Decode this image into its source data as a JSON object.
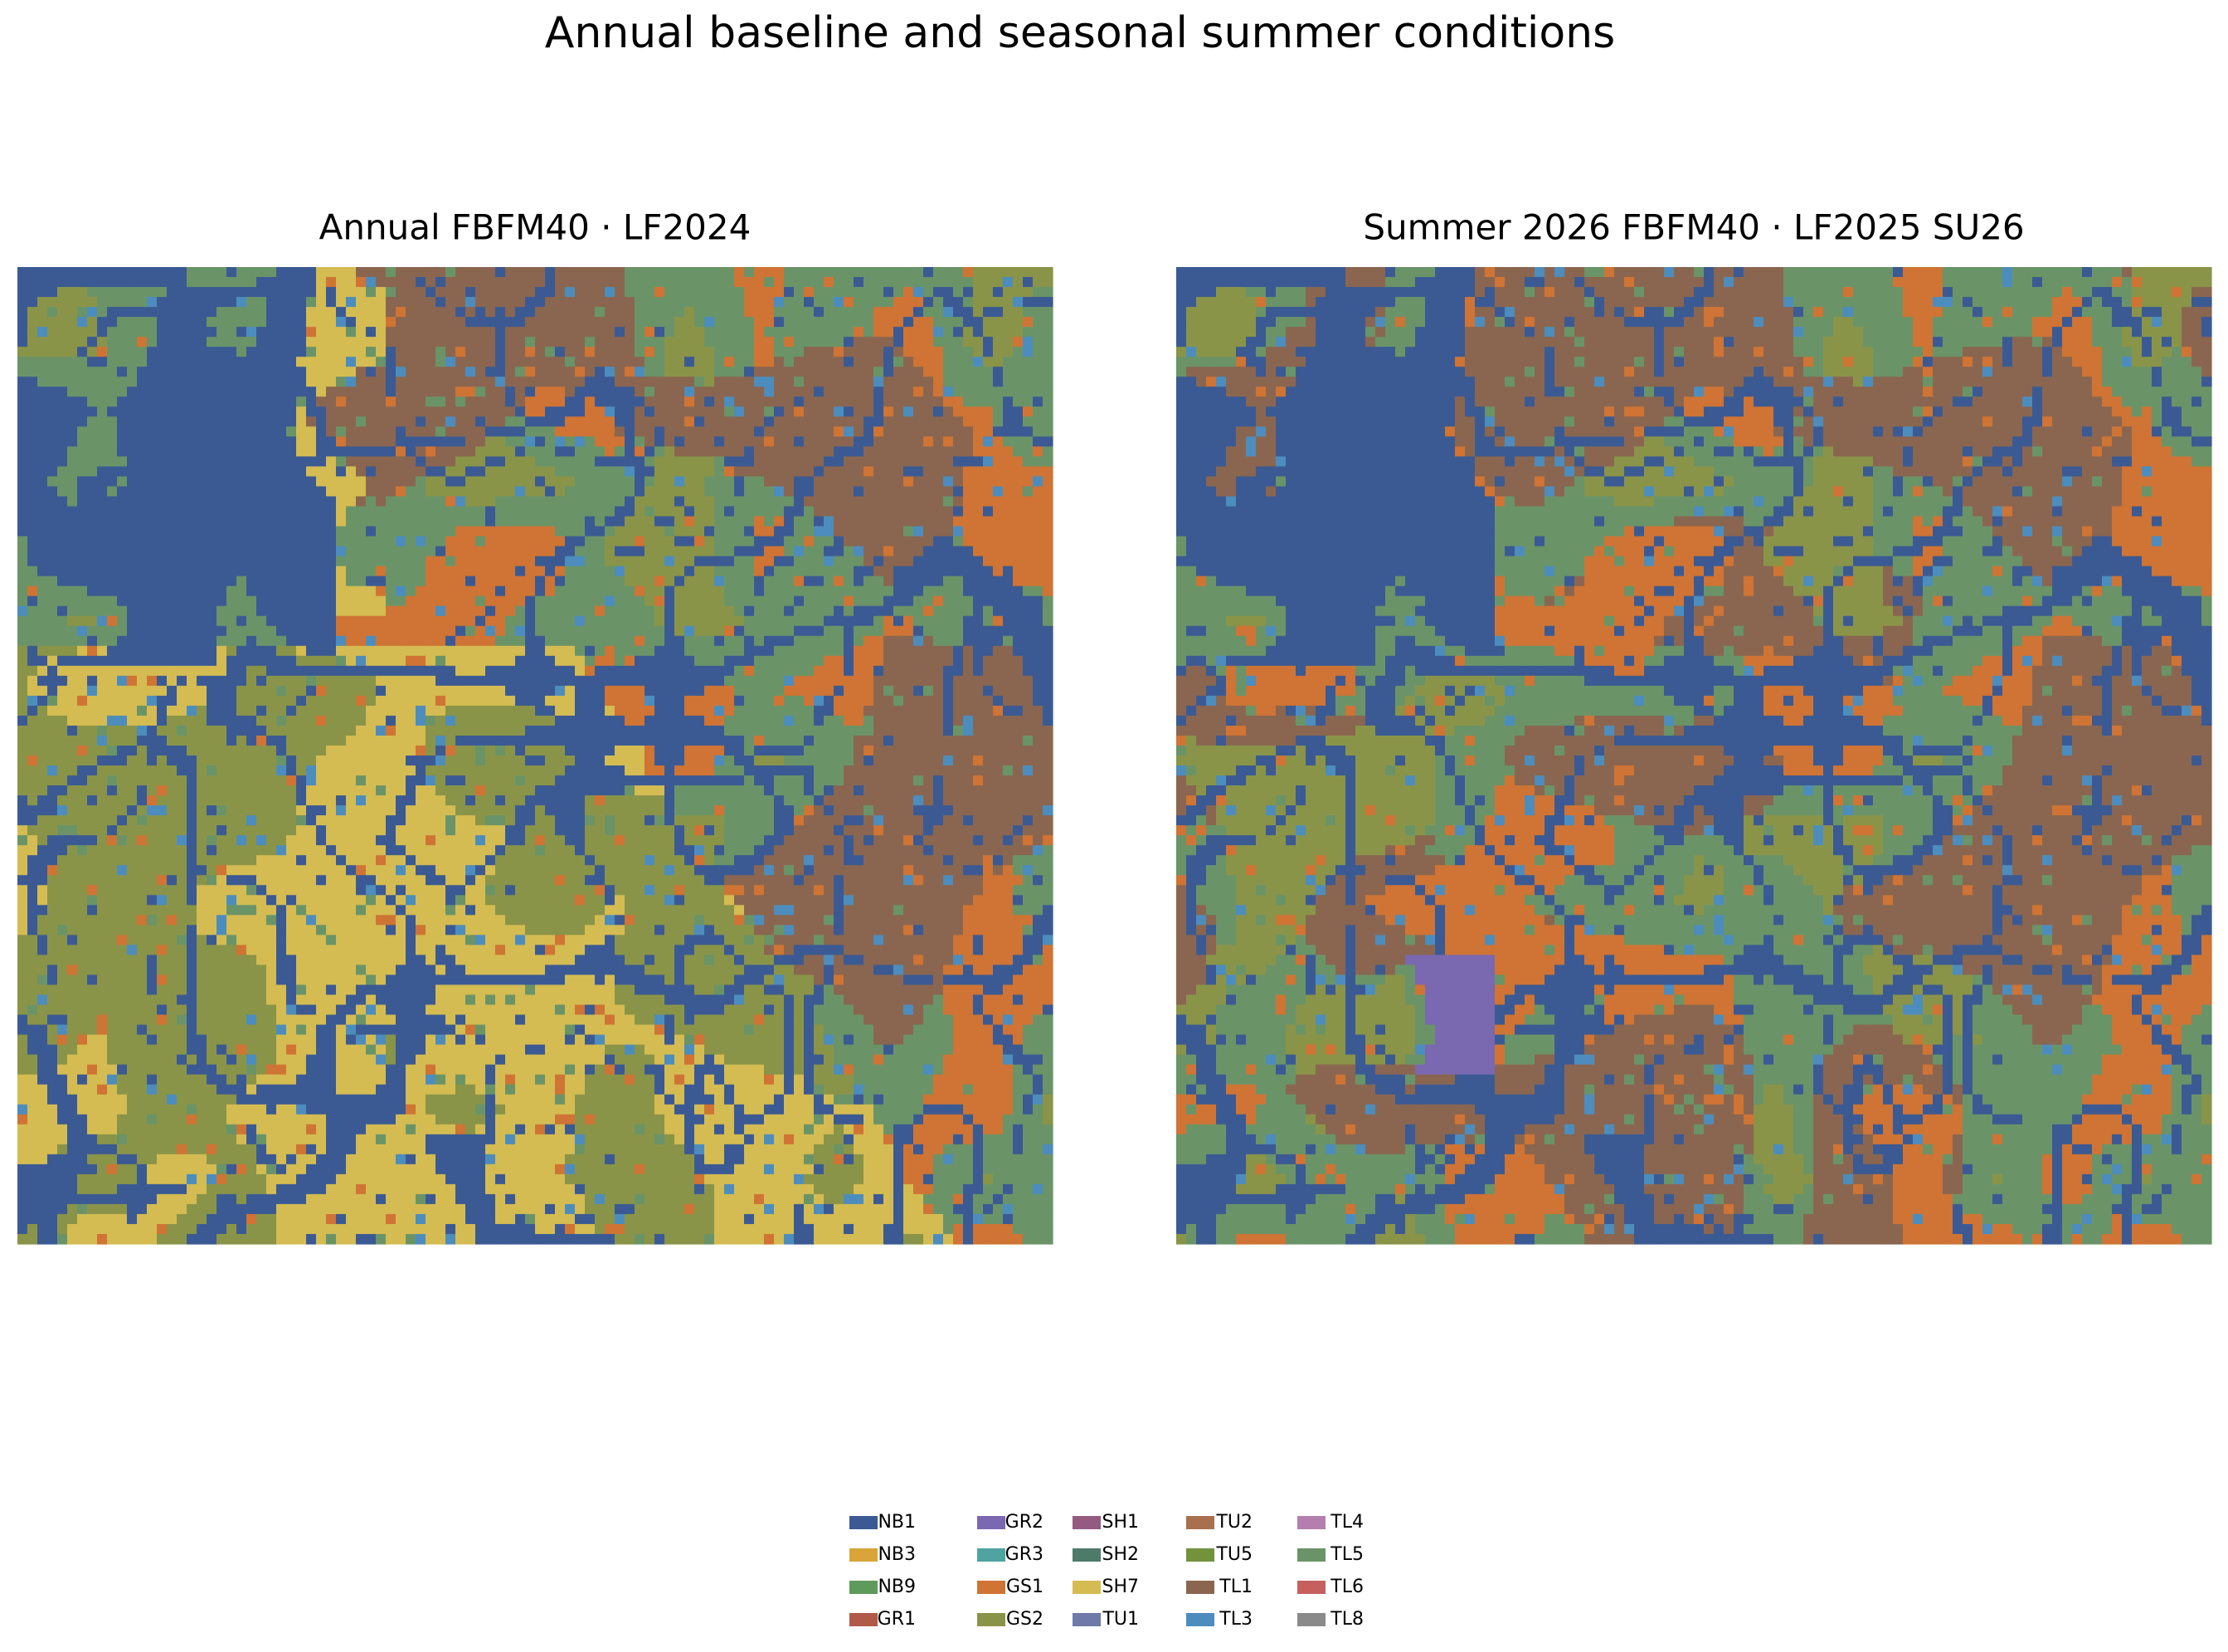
{
  "title": "Annual baseline and seasonal summer conditions",
  "panels": [
    {
      "title": "Annual FBFM40 · LF2024"
    },
    {
      "title": "Summer 2026 FBFM40 · LF2025 SU26"
    }
  ],
  "legend": [
    {
      "name": "NB1",
      "color": "#3b5a93"
    },
    {
      "name": "NB3",
      "color": "#d9a53a"
    },
    {
      "name": "NB9",
      "color": "#5e9a5a"
    },
    {
      "name": "GR1",
      "color": "#b05a48"
    },
    {
      "name": "GR2",
      "color": "#7a68b0"
    },
    {
      "name": "GR3",
      "color": "#4fa3a0"
    },
    {
      "name": "GS1",
      "color": "#cf7434"
    },
    {
      "name": "GS2",
      "color": "#8a9448"
    },
    {
      "name": "SH1",
      "color": "#955a80"
    },
    {
      "name": "SH2",
      "color": "#4e7a6a"
    },
    {
      "name": "SH7",
      "color": "#d4bc52"
    },
    {
      "name": "TU1",
      "color": "#6f7aa8"
    },
    {
      "name": "TU2",
      "color": "#a8704e"
    },
    {
      "name": "TU5",
      "color": "#73923c"
    },
    {
      "name": "TL1",
      "color": "#8a6650"
    },
    {
      "name": "TL3",
      "color": "#4d8dbd"
    },
    {
      "name": "TL4",
      "color": "#b47fae"
    },
    {
      "name": "TL5",
      "color": "#6a9468"
    },
    {
      "name": "TL6",
      "color": "#c5605e"
    },
    {
      "name": "TL8",
      "color": "#8a8a8a"
    }
  ]
}
